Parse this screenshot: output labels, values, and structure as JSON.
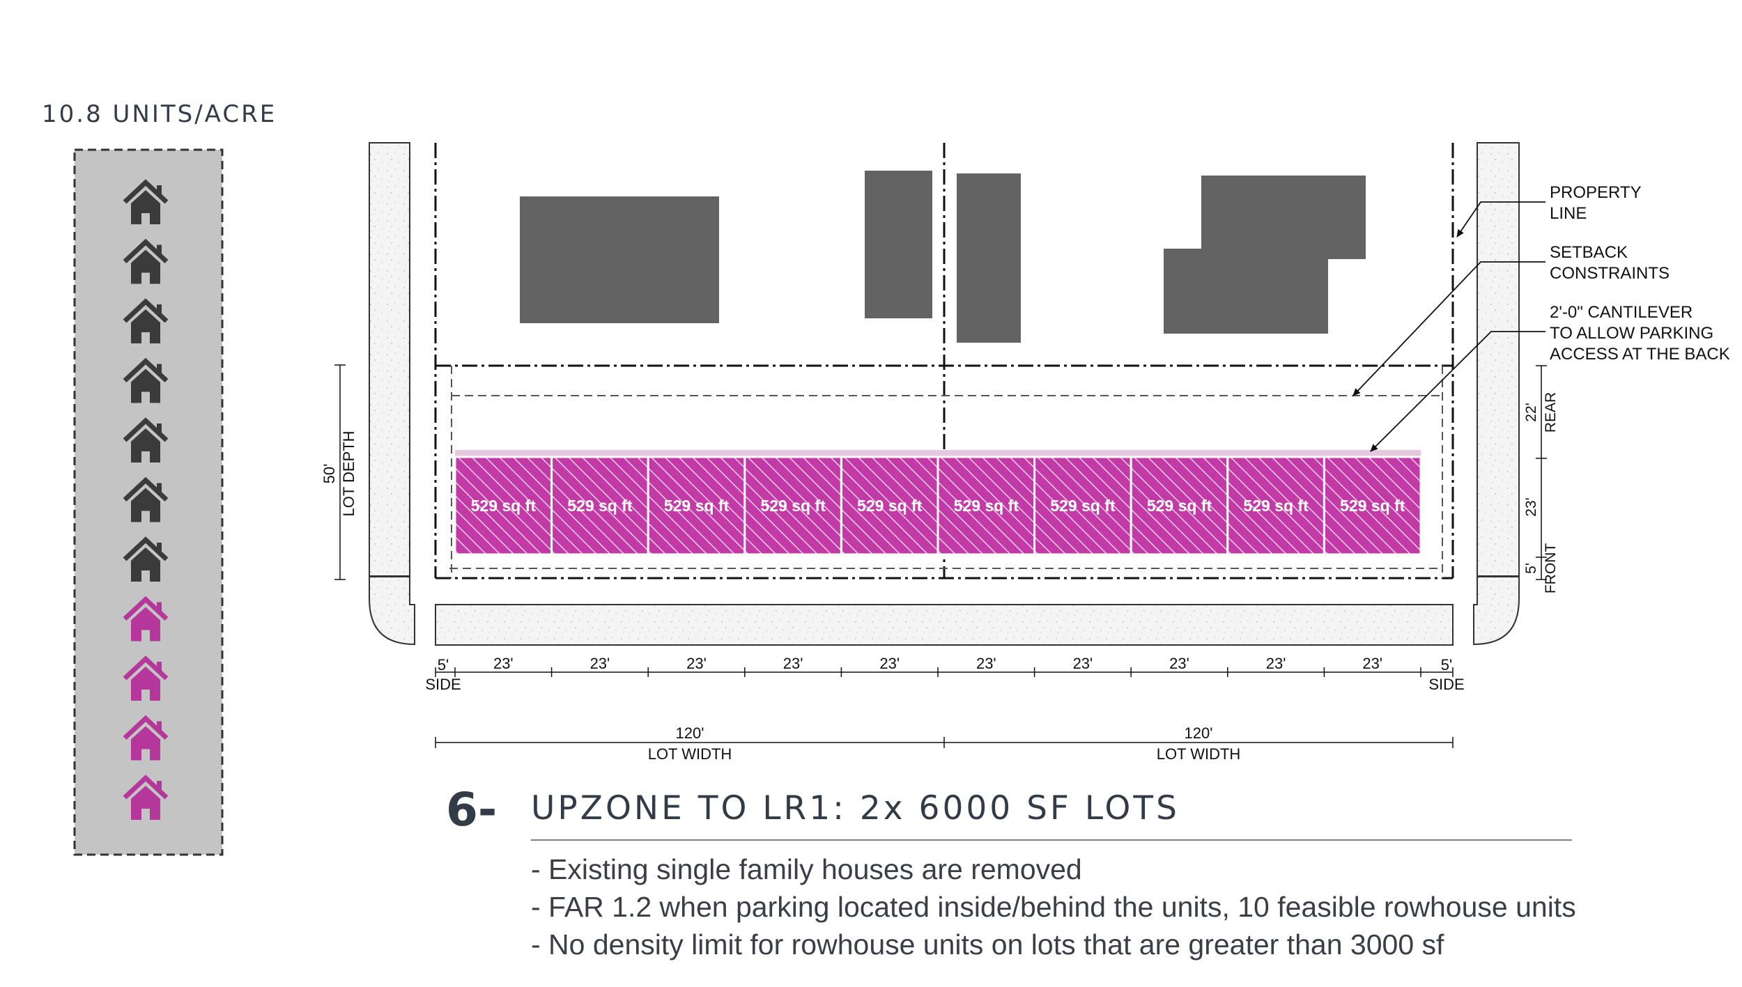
{
  "density": {
    "title": "10.8 UNITS/ACRE",
    "houses": [
      {
        "state": "existing",
        "color": "#3b3b3b"
      },
      {
        "state": "existing",
        "color": "#3b3b3b"
      },
      {
        "state": "existing",
        "color": "#3b3b3b"
      },
      {
        "state": "existing",
        "color": "#3b3b3b"
      },
      {
        "state": "existing",
        "color": "#3b3b3b"
      },
      {
        "state": "existing",
        "color": "#3b3b3b"
      },
      {
        "state": "existing",
        "color": "#3b3b3b"
      },
      {
        "state": "added",
        "color": "#b5379b"
      },
      {
        "state": "added",
        "color": "#b5379b"
      },
      {
        "state": "added",
        "color": "#b5379b"
      },
      {
        "state": "added",
        "color": "#b5379b"
      }
    ]
  },
  "plan": {
    "units": [
      {
        "area": "529 sq ft"
      },
      {
        "area": "529 sq ft"
      },
      {
        "area": "529 sq ft"
      },
      {
        "area": "529 sq ft"
      },
      {
        "area": "529 sq ft"
      },
      {
        "area": "529 sq ft"
      },
      {
        "area": "529 sq ft"
      },
      {
        "area": "529 sq ft"
      },
      {
        "area": "529 sq ft"
      },
      {
        "area": "529 sq ft"
      }
    ],
    "unit_width": "23'",
    "side_left": {
      "value": "5'",
      "label": "SIDE"
    },
    "side_right": {
      "value": "5'",
      "label": "SIDE"
    },
    "lot_width": {
      "value": "120'",
      "label": "LOT WIDTH"
    },
    "lot_depth": {
      "value": "50'",
      "label": "LOT DEPTH"
    },
    "rear": {
      "value": "22'",
      "label": "REAR"
    },
    "unit_depth": "23'",
    "front": {
      "value": "5'",
      "label": "FRONT"
    },
    "callouts": {
      "property_line": [
        "PROPERTY",
        "LINE"
      ],
      "setback": [
        "SETBACK",
        "CONSTRAINTS"
      ],
      "cantilever": [
        "2'-0\" CANTILEVER",
        "TO ALLOW PARKING",
        "ACCESS AT THE BACK"
      ]
    },
    "colors": {
      "unit_fill": "#c23aa5",
      "cantilever": "#e6c9de",
      "house": "#636363",
      "street": "#f3f3f3"
    }
  },
  "step": {
    "number": "6-",
    "title": "UPZONE TO LR1: 2x 6000 SF LOTS",
    "bullets": [
      "- Existing single family houses are removed",
      "- FAR 1.2 when parking located inside/behind the units, 10 feasible rowhouse units",
      "- No density limit for rowhouse units on lots that are greater than 3000 sf"
    ]
  }
}
